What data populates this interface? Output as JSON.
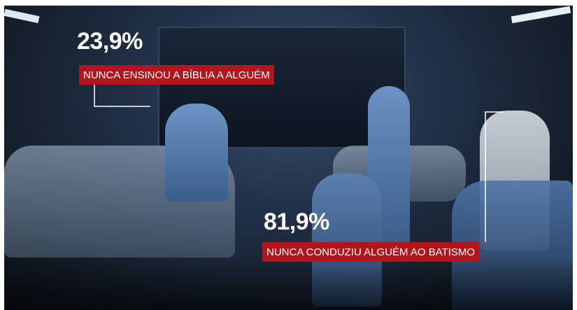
{
  "annotations": [
    {
      "stat": "23,9%",
      "label": "NUNCA ENSINOU A BÍBLIA A ALGUÉM"
    },
    {
      "stat": "81,9%",
      "label": "NUNCA CONDUZIU ALGUÉM AO BATISMO"
    }
  ]
}
